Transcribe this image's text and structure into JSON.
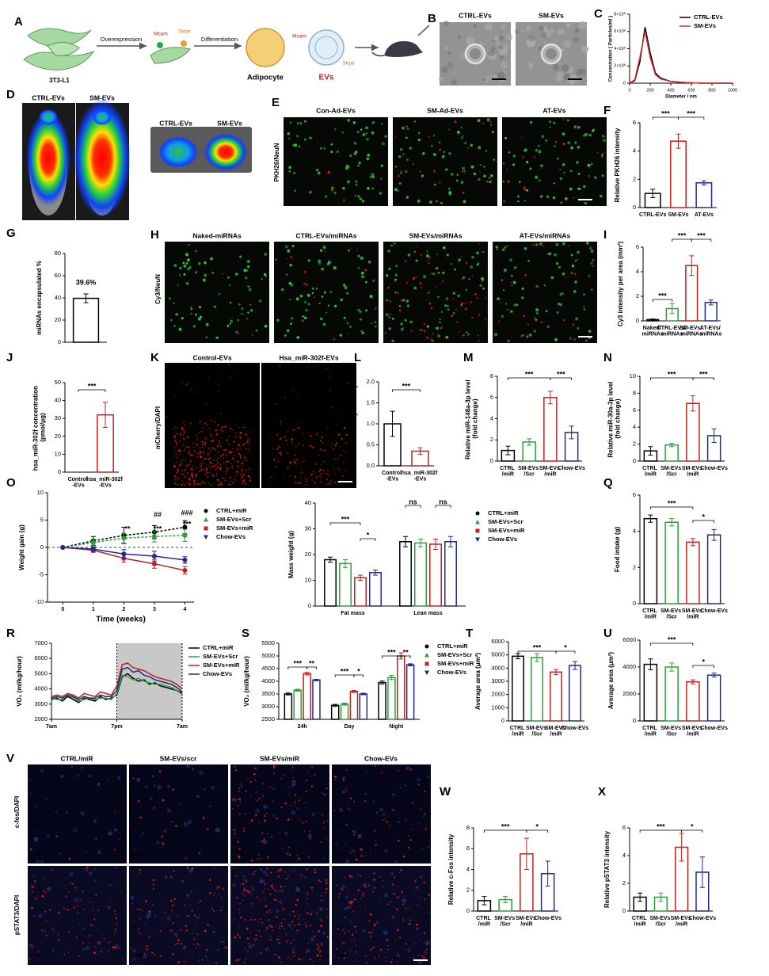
{
  "diagram": {
    "panel": "A",
    "labels": [
      "Overexpression",
      "Mcam",
      "Sirpa",
      "Differentiation",
      "Mcam",
      "Sirpa",
      "3T3-L1",
      "Adipocyte",
      "EVs"
    ]
  },
  "images": [
    {
      "panel": "B",
      "titles": [
        "CTRL-EVs",
        "SM-EVs"
      ]
    },
    {
      "panel": "D",
      "titles": [
        "CTRL-EVs",
        "SM-EVs"
      ]
    },
    {
      "titles": [
        "CTRL-EVs",
        "SM-EVs"
      ]
    },
    {
      "panel": "E",
      "titles": [
        "Con-Ad-EVs",
        "SM-Ad-EVs",
        "AT-EVs"
      ],
      "stain": "PKH26/NeuN"
    },
    {
      "panel": "H",
      "titles": [
        "Naked-miRNAs",
        "CTRL-EVs/miRNAs",
        "SM-EVs/miRNAs",
        "AT-EVs/miRNAs"
      ],
      "stain": "Cy3/NeuN"
    },
    {
      "panel": "K",
      "titles": [
        "Control-EVs",
        "Hsa_miR-302f-EVs"
      ],
      "stain": "mCherry/DAPI"
    },
    {
      "panel": "V",
      "titles": [
        "CTRL/miR",
        "SM-EVs/scr",
        "SM-EVs/miR",
        "Chow-EVs"
      ],
      "stains": [
        "c-fos/DAPI",
        "pSTAT3/DAPI"
      ],
      "regions": [
        "3V",
        "ME"
      ]
    }
  ],
  "chart_data": [
    {
      "type": "line",
      "panel": "C",
      "ylabel": "Concentration ( Particles/ml )",
      "xlabel": "Diameter / nm",
      "x": [
        0,
        50,
        100,
        150,
        200,
        250,
        300,
        400,
        500,
        600,
        700,
        800,
        900,
        1000
      ],
      "series": [
        {
          "name": "CTRL-EVs",
          "color": "#000000",
          "values": [
            0,
            30000000,
            250000000,
            650000000,
            350000000,
            120000000,
            60000000,
            20000000,
            10000000,
            5000000,
            0,
            0,
            0,
            0
          ]
        },
        {
          "name": "SM-EVs",
          "color": "#d03030",
          "values": [
            0,
            40000000,
            300000000,
            600000000,
            300000000,
            100000000,
            50000000,
            20000000,
            10000000,
            5000000,
            0,
            0,
            0,
            0
          ]
        }
      ],
      "xlim": [
        0,
        1000
      ],
      "xticks": [
        0,
        200,
        400,
        600,
        800,
        1000
      ],
      "ylim": [
        0,
        800000000
      ],
      "yticks": [
        0,
        {
          "value": 200000000,
          "label": "2×10⁸"
        },
        {
          "value": 400000000,
          "label": "4×10⁸"
        },
        {
          "value": 600000000,
          "label": "6×10⁸"
        },
        {
          "value": 800000000,
          "label": "8×10⁸"
        }
      ],
      "legend": "upper right"
    },
    {
      "type": "bar",
      "panel": "F",
      "ylabel": "Relative PKH26 intensity",
      "categories": [
        "CTRL-EVs",
        "SM-EVs",
        "AT-EVs"
      ],
      "values": [
        1.0,
        4.7,
        1.75
      ],
      "errors": [
        0.3,
        0.5,
        0.15
      ],
      "colors": [
        "#000000",
        "#c0201e",
        "#1f2a8c"
      ],
      "ylim": [
        0,
        6
      ],
      "yticks": [
        0,
        2,
        4,
        6
      ],
      "annotations": [
        "***",
        "***"
      ]
    },
    {
      "type": "bar",
      "panel": "G",
      "ylabel": "miRNAs encapsulated %",
      "values": [
        39.6
      ],
      "value_labels": [
        "39.6%"
      ],
      "errors": [
        4
      ],
      "color": "#000000",
      "ylim": [
        0,
        80
      ],
      "yticks": [
        0,
        20,
        40,
        60,
        80
      ]
    },
    {
      "type": "bar",
      "panel": "I",
      "ylabel": "Cy3 intensity per area (mm²)",
      "categories": [
        "Naked/\nmiRNAs",
        "CTRL-EVs/\nmiRNAs",
        "SM-EVs/\nmiRNAs",
        "AT-EVs/\nmiRNAs"
      ],
      "values": [
        0.1,
        1.0,
        4.5,
        1.5
      ],
      "errors": [
        0.05,
        0.4,
        0.8,
        0.2
      ],
      "colors": [
        "#000000",
        "#2e9e3a",
        "#c0201e",
        "#1f2a8c"
      ],
      "ylim": [
        0,
        6
      ],
      "yticks": [
        0,
        2,
        4,
        6
      ],
      "annotations": [
        "***",
        "***",
        "***"
      ]
    },
    {
      "type": "bar",
      "panel": "J",
      "ylabel": "hsa_miR-302f concentration\n(pmol/μg)",
      "categories": [
        "Control\n-EVs",
        "hsa_miR-302f\n-EVs"
      ],
      "values": [
        0,
        32
      ],
      "errors": [
        0,
        7
      ],
      "colors": [
        "#000000",
        "#c0201e"
      ],
      "ylim": [
        0,
        50
      ],
      "yticks": [
        0,
        10,
        20,
        30,
        40,
        50
      ],
      "annotations": [
        "***"
      ]
    },
    {
      "type": "bar",
      "panel": "L",
      "ylabel": "Relative mcherry intensity",
      "categories": [
        "Control\n-EVs",
        "hsa_miR-302f\n-EVs"
      ],
      "values": [
        1.0,
        0.35
      ],
      "errors": [
        0.3,
        0.08
      ],
      "colors": [
        "#000000",
        "#c0201e"
      ],
      "ylim": [
        0,
        2
      ],
      "yticks": [
        {
          "value": 0,
          "label": "0.0"
        },
        0.5,
        {
          "value": 1,
          "label": "1.0"
        },
        1.5,
        {
          "value": 2,
          "label": "2.0"
        }
      ],
      "annotations": [
        "***"
      ]
    },
    {
      "type": "bar",
      "panel": "M",
      "ylabel": "Relative miR-148a-3p level\n(fold change)",
      "categories": [
        "CTRL\n/miR",
        "SM-EVs\n/Scr",
        "SM-EVs\n/miR",
        "Chow-EVs"
      ],
      "values": [
        1.0,
        1.8,
        6.0,
        2.7
      ],
      "errors": [
        0.4,
        0.3,
        0.6,
        0.6
      ],
      "colors": [
        "#000000",
        "#2e9e3a",
        "#c0201e",
        "#1f2a8c"
      ],
      "ylim": [
        0,
        8
      ],
      "yticks": [
        0,
        2,
        4,
        6,
        8
      ],
      "annotations": [
        "***",
        "***"
      ]
    },
    {
      "type": "bar",
      "panel": "N",
      "ylabel": "Relative miR-30a-3p level\n(fold change)",
      "categories": [
        "CTRL\n/miR",
        "SM-EVs\n/Scr",
        "SM-EVs\n/miR",
        "Chow-EVs"
      ],
      "values": [
        1.2,
        1.9,
        6.8,
        3.0
      ],
      "errors": [
        0.5,
        0.2,
        0.9,
        0.8
      ],
      "colors": [
        "#000000",
        "#2e9e3a",
        "#c0201e",
        "#1f2a8c"
      ],
      "ylim": [
        0,
        10
      ],
      "yticks": [
        0,
        2,
        4,
        6,
        8,
        10
      ],
      "annotations": [
        "***",
        "***"
      ]
    },
    {
      "type": "line",
      "panel": "O",
      "ylabel": "Weight gain (g)",
      "xlabel": "Time (weeks)",
      "x": [
        0,
        1,
        2,
        3,
        4
      ],
      "markers": true,
      "series": [
        {
          "name": "CTRL+miR",
          "color": "#000000",
          "dashed": true,
          "values": [
            0,
            1.2,
            2.2,
            2.8,
            3.7
          ],
          "errors": [
            0,
            0.8,
            1.5,
            1.2,
            1.2
          ]
        },
        {
          "name": "SM-EVs+Scr",
          "color": "#2e9e3a",
          "dashed": true,
          "values": [
            0,
            0.9,
            1.7,
            2.0,
            2.2
          ],
          "errors": [
            0,
            0.6,
            0.9,
            1.0,
            1.1
          ]
        },
        {
          "name": "SM-EVs+miR",
          "color": "#c0201e",
          "values": [
            0,
            -0.5,
            -2.0,
            -3.0,
            -4.2
          ],
          "errors": [
            0,
            0.4,
            0.7,
            0.8,
            0.7
          ]
        },
        {
          "name": "Chow-EVs",
          "color": "#1f2a8c",
          "values": [
            0,
            -0.3,
            -1.2,
            -1.6,
            -2.3
          ],
          "errors": [
            0,
            0.4,
            0.8,
            0.9,
            0.6
          ]
        }
      ],
      "xlim": [
        -0.5,
        4.3
      ],
      "xticks": [
        0,
        1,
        2,
        3,
        4
      ],
      "ylim": [
        -10,
        10
      ],
      "yticks": [
        -10,
        -5,
        0,
        5,
        10
      ],
      "annotations": [
        "**",
        "***",
        "##",
        "***",
        "###"
      ]
    },
    {
      "type": "grouped_bar",
      "panel": "P",
      "ylabel": "Mass weight (g)",
      "categories": [
        "Fat mass",
        "Lean mass"
      ],
      "series": [
        {
          "name": "CTRL+miR",
          "color": "#000000",
          "values": [
            18,
            25
          ],
          "errors": [
            1,
            2
          ]
        },
        {
          "name": "SM-EVs+Scr",
          "color": "#2e9e3a",
          "values": [
            16.5,
            24.5
          ],
          "errors": [
            1.5,
            1.5
          ]
        },
        {
          "name": "SM-EVs+miR",
          "color": "#c0201e",
          "values": [
            11,
            24
          ],
          "errors": [
            1,
            2
          ]
        },
        {
          "name": "Chow-EVs",
          "color": "#1f2a8c",
          "values": [
            13,
            25
          ],
          "errors": [
            1,
            2
          ]
        }
      ],
      "ylim": [
        0,
        40
      ],
      "yticks": [
        0,
        10,
        20,
        30,
        40
      ],
      "annotations": [
        "***",
        "*",
        "ns",
        "ns"
      ]
    },
    {
      "type": "bar",
      "panel": "Q",
      "ylabel": "Food intake (g)",
      "categories": [
        "CTRL\n/miR",
        "SM-EVs\n/Scr",
        "SM-EVs\n/miR",
        "Chow-EVs"
      ],
      "values": [
        4.7,
        4.5,
        3.4,
        3.8
      ],
      "errors": [
        0.2,
        0.2,
        0.2,
        0.3
      ],
      "colors": [
        "#000000",
        "#2e9e3a",
        "#c0201e",
        "#1f2a8c"
      ],
      "ylim": [
        0,
        6
      ],
      "yticks": [
        0,
        2,
        4,
        6
      ],
      "annotations": [
        "***",
        "*"
      ]
    },
    {
      "type": "line",
      "panel": "R",
      "ylabel": "VO₂ (ml/kg/hour)",
      "x": [
        0,
        1,
        2,
        3,
        4,
        5,
        6,
        7,
        8,
        9,
        10,
        11,
        12,
        13,
        14,
        15,
        16,
        17,
        18,
        19,
        20,
        21,
        22,
        23,
        24
      ],
      "series": [
        {
          "name": "CTRL+miR",
          "color": "#000000",
          "values": [
            3300,
            3400,
            3200,
            3500,
            3300,
            3100,
            3400,
            3300,
            3200,
            3500,
            3300,
            3400,
            3600,
            4800,
            5000,
            4700,
            4500,
            4600,
            4300,
            4400,
            4200,
            4100,
            4000,
            3900,
            3700
          ]
        },
        {
          "name": "SM-EVs+Scr",
          "color": "#2e9e3a",
          "values": [
            3400,
            3300,
            3300,
            3600,
            3400,
            3200,
            3300,
            3400,
            3300,
            3400,
            3400,
            3300,
            3700,
            4900,
            4800,
            4600,
            4700,
            4500,
            4400,
            4300,
            4300,
            4200,
            4100,
            3900,
            3800
          ]
        },
        {
          "name": "SM-EVs+miR",
          "color": "#c0201e",
          "values": [
            3500,
            3600,
            3500,
            3700,
            3600,
            3400,
            3700,
            3600,
            3500,
            3800,
            3700,
            3600,
            4200,
            5600,
            5700,
            5400,
            5300,
            5200,
            5000,
            4800,
            4700,
            4600,
            4500,
            4300,
            4000
          ]
        },
        {
          "name": "Chow-EVs",
          "color": "#1f2a8c",
          "values": [
            3400,
            3500,
            3400,
            3600,
            3500,
            3300,
            3500,
            3400,
            3400,
            3600,
            3500,
            3500,
            3900,
            5300,
            5400,
            5100,
            5200,
            4900,
            4800,
            4600,
            4500,
            4400,
            4300,
            4100,
            3800
          ]
        }
      ],
      "xlim": [
        0,
        24
      ],
      "xticks": [
        {
          "value": 0,
          "label": "7am"
        },
        {
          "value": 12,
          "label": "7pm"
        },
        {
          "value": 24,
          "label": "7am"
        }
      ],
      "ylim": [
        2000,
        7000
      ],
      "yticks": [
        2000,
        3000,
        4000,
        5000,
        6000,
        7000
      ]
    },
    {
      "type": "grouped_bar",
      "panel": "S",
      "ylabel": "VO₂ (ml/kg/hour)",
      "categories": [
        "24h",
        "Day",
        "Night"
      ],
      "series": [
        {
          "name": "CTRL+miR",
          "color": "#000000",
          "values": [
            3500,
            3050,
            3950
          ],
          "errors": [
            40,
            40,
            60
          ]
        },
        {
          "name": "SM-EVs+Scr",
          "color": "#2e9e3a",
          "values": [
            3650,
            3100,
            4150
          ],
          "errors": [
            40,
            40,
            80
          ]
        },
        {
          "name": "SM-EVs+miR",
          "color": "#c0201e",
          "values": [
            4300,
            3600,
            5000
          ],
          "errors": [
            50,
            40,
            120
          ]
        },
        {
          "name": "Chow-EVs",
          "color": "#1f2a8c",
          "values": [
            4050,
            3500,
            4650
          ],
          "errors": [
            30,
            30,
            40
          ]
        }
      ],
      "ylim": [
        2500,
        5500
      ],
      "yticks": [
        2500,
        3000,
        3500,
        4000,
        4500,
        5000,
        5500
      ],
      "annotations": [
        "***",
        "**",
        "***",
        "*",
        "***",
        "**"
      ]
    },
    {
      "type": "bar",
      "panel": "T",
      "ylabel": "Average area (μm²)",
      "categories": [
        "CTRL\n/miR",
        "SM-EVs\n/Scr",
        "SM-EVs\n/miR",
        "Chow-EVs"
      ],
      "values": [
        4900,
        4800,
        3700,
        4200
      ],
      "errors": [
        200,
        300,
        200,
        300
      ],
      "colors": [
        "#000000",
        "#2e9e3a",
        "#c0201e",
        "#1f2a8c"
      ],
      "ylim": [
        0,
        6000
      ],
      "yticks": [
        0,
        1000,
        2000,
        3000,
        4000,
        5000,
        6000
      ],
      "annotations": [
        "***",
        "*"
      ]
    },
    {
      "type": "bar",
      "panel": "U",
      "ylabel": "Average area (μm²)",
      "categories": [
        "CTRL\n/miR",
        "SM-EVs\n/Scr",
        "SM-EVs\n/miR",
        "Chow-EVs"
      ],
      "values": [
        4200,
        4000,
        2900,
        3400
      ],
      "errors": [
        400,
        300,
        150,
        150
      ],
      "colors": [
        "#000000",
        "#2e9e3a",
        "#c0201e",
        "#1f2a8c"
      ],
      "ylim": [
        0,
        6000
      ],
      "yticks": [
        0,
        2000,
        4000,
        6000
      ],
      "annotations": [
        "***",
        "*"
      ]
    },
    {
      "type": "bar",
      "panel": "W",
      "ylabel": "Relative c-Fos intensity",
      "categories": [
        "CTRL\n/miR",
        "SM-EVs\n/Scr",
        "SM-EVs\n/miR",
        "Chow-EVs"
      ],
      "values": [
        1.0,
        1.1,
        5.5,
        3.6
      ],
      "errors": [
        0.4,
        0.3,
        1.5,
        1.2
      ],
      "colors": [
        "#000000",
        "#2e9e3a",
        "#c0201e",
        "#1f2a8c"
      ],
      "ylim": [
        0,
        8
      ],
      "yticks": [
        0,
        2,
        4,
        6,
        8
      ],
      "annotations": [
        "***",
        "*"
      ]
    },
    {
      "type": "bar",
      "panel": "X",
      "ylabel": "Relative pSTAT3 intensity",
      "categories": [
        "CTRL\n/miR",
        "SM-EVs\n/Scr",
        "SM-EVs\n/miR",
        "Chow-EVs"
      ],
      "values": [
        1.0,
        1.0,
        4.6,
        2.8
      ],
      "errors": [
        0.3,
        0.3,
        1.0,
        1.1
      ],
      "colors": [
        "#000000",
        "#2e9e3a",
        "#c0201e",
        "#1f2a8c"
      ],
      "ylim": [
        0,
        6
      ],
      "yticks": [
        0,
        2,
        4,
        6
      ],
      "annotations": [
        "***",
        "*"
      ]
    }
  ]
}
